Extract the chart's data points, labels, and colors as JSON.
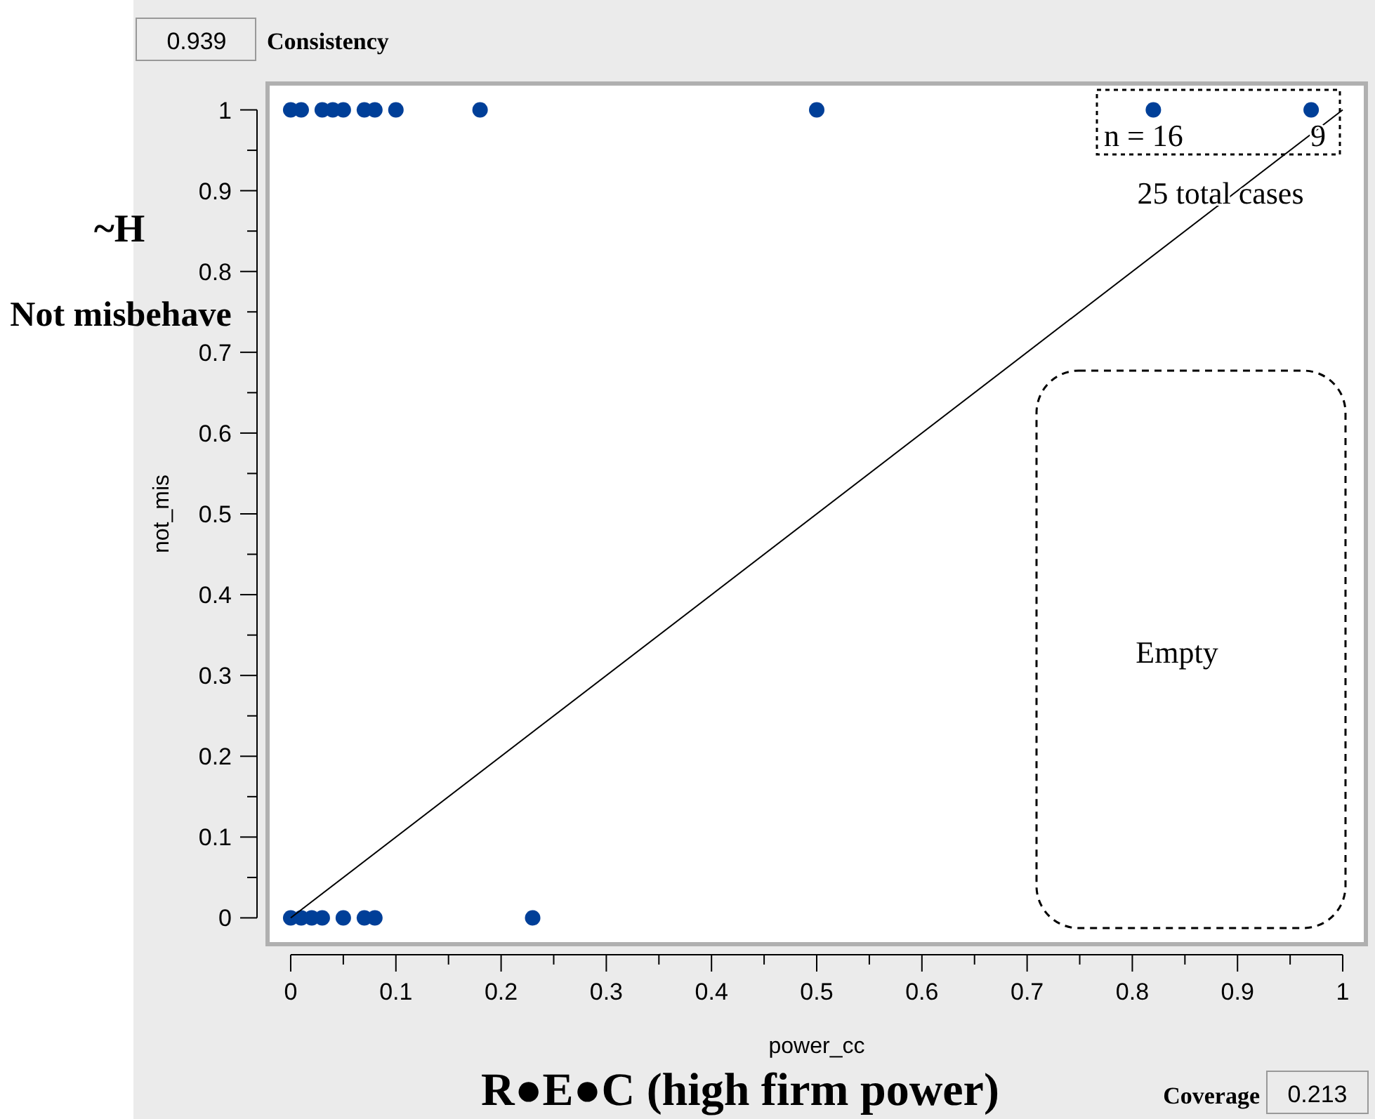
{
  "chart_data": {
    "type": "scatter",
    "xlabel": "power_cc",
    "ylabel": "not_mis",
    "xlim": [
      -0.02,
      1.02
    ],
    "ylim": [
      -0.03,
      1.03
    ],
    "xticks": [
      0,
      {
        "value": 0.05,
        "label": null
      },
      0.1,
      {
        "value": 0.15,
        "label": null
      },
      0.2,
      {
        "value": 0.25,
        "label": null
      },
      0.3,
      {
        "value": 0.35,
        "label": null
      },
      0.4,
      {
        "value": 0.45,
        "label": null
      },
      0.5,
      {
        "value": 0.55,
        "label": null
      },
      0.6,
      {
        "value": 0.65,
        "label": null
      },
      0.7,
      {
        "value": 0.75,
        "label": null
      },
      0.8,
      {
        "value": 0.85,
        "label": null
      },
      0.9,
      {
        "value": 0.95,
        "label": null
      },
      1
    ],
    "yticks": [
      0,
      {
        "value": 0.05,
        "label": null
      },
      0.1,
      {
        "value": 0.15,
        "label": null
      },
      0.2,
      {
        "value": 0.25,
        "label": null
      },
      0.3,
      {
        "value": 0.35,
        "label": null
      },
      0.4,
      {
        "value": 0.45,
        "label": null
      },
      0.5,
      {
        "value": 0.55,
        "label": null
      },
      0.6,
      {
        "value": 0.65,
        "label": null
      },
      0.7,
      {
        "value": 0.75,
        "label": null
      },
      0.8,
      {
        "value": 0.85,
        "label": null
      },
      0.9,
      {
        "value": 0.95,
        "label": null
      },
      1
    ],
    "grid": false,
    "marker": "circle",
    "series": [
      {
        "color": "#003f98",
        "x": [
          0,
          0.01,
          0.03,
          0.04,
          0.05,
          0.07,
          0.08,
          0.1,
          0.18,
          0.5,
          0.82,
          0.97,
          0,
          0.01,
          0.02,
          0.03,
          0.05,
          0.07,
          0.08,
          0.23
        ],
        "values": [
          1,
          1,
          1,
          1,
          1,
          1,
          1,
          1,
          1,
          1,
          1,
          1,
          0,
          0,
          0,
          0,
          0,
          0,
          0,
          0
        ]
      },
      {
        "type": "line",
        "color": "#000000",
        "x": [
          0,
          1
        ],
        "values": [
          0,
          1
        ],
        "marker": "none"
      }
    ],
    "annotations": [
      "0.939",
      "Consistency",
      "Coverage",
      "0.213",
      "n = 16",
      "9",
      "25 total cases",
      "Empty",
      "~H",
      "Not misbehave",
      "R●E●C (high firm power)"
    ]
  }
}
